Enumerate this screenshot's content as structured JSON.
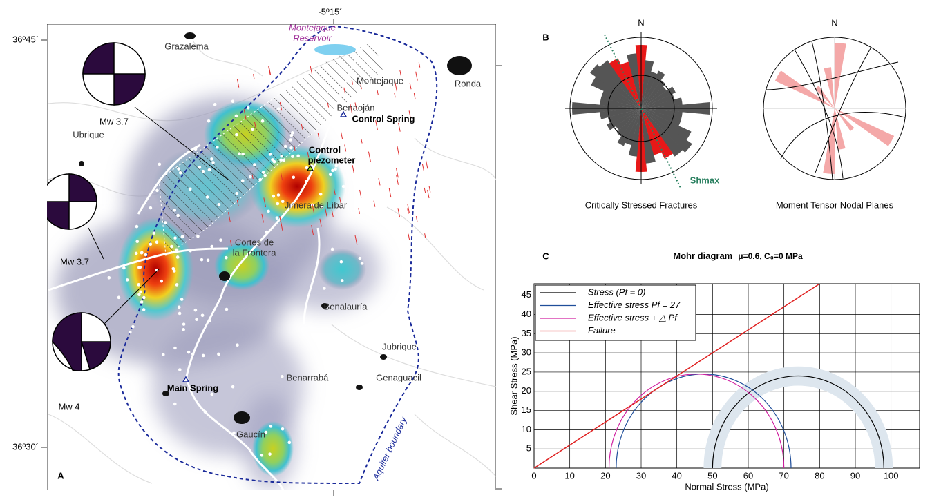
{
  "map": {
    "panel_label": "A",
    "lat_labels": [
      "36º45´",
      "36º30´"
    ],
    "lon_label": "-5º15´",
    "reservoir": [
      "Montejaque",
      "Reservoir"
    ],
    "places": [
      "Grazalema",
      "Montejaque",
      "Ronda",
      "Benaoján",
      "Ubrique",
      "Jimera de Líbar",
      "Benalauría",
      "Jubrique",
      "Genaguacil",
      "Benarrabá",
      "Gaucín"
    ],
    "cortes": [
      "Cortes de",
      "la Frontera"
    ],
    "control_spring": "Control Spring",
    "main_spring": "Main Spring",
    "piezometer": [
      "Control",
      "piezometer"
    ],
    "boundary": "Aquifer boundary",
    "events": [
      "Mw 3.7",
      "Mw 3.7",
      "Mw 4"
    ]
  },
  "rose": {
    "panel_label": "B",
    "north": "N",
    "shmax": "Shmax",
    "titles": [
      "Critically Stressed Fractures",
      "Moment Tensor Nodal Planes"
    ]
  },
  "chart_data": {
    "type": "mohr",
    "panel_label": "C",
    "title": "Mohr diagram",
    "subtitle": "μ=0.6, C₀=0 MPa",
    "x_label": "Normal Stress (MPa)",
    "y_label": "Shear Stress (MPa)",
    "xlim": [
      0,
      108
    ],
    "ylim": [
      0,
      48
    ],
    "xticks": [
      0,
      10,
      20,
      30,
      40,
      50,
      60,
      70,
      80,
      90,
      100
    ],
    "yticks": [
      5,
      10,
      15,
      20,
      25,
      30,
      35,
      40,
      45
    ],
    "grid": true,
    "series": [
      {
        "name": "Stress (Pf = 0)",
        "color": "#000000",
        "center": 74,
        "radius": 24,
        "band": [
          21.5,
          26.5
        ]
      },
      {
        "name": "Effective stress Pf = 27",
        "color": "#1f4e9a",
        "center": 47.5,
        "radius": 24.5
      },
      {
        "name": "Effective stress + △ Pf",
        "color": "#d020a0",
        "center": 45.5,
        "radius": 24.5
      },
      {
        "name": "Failure",
        "color": "#e02020",
        "slope": 0.6,
        "intercept": 0
      }
    ]
  }
}
